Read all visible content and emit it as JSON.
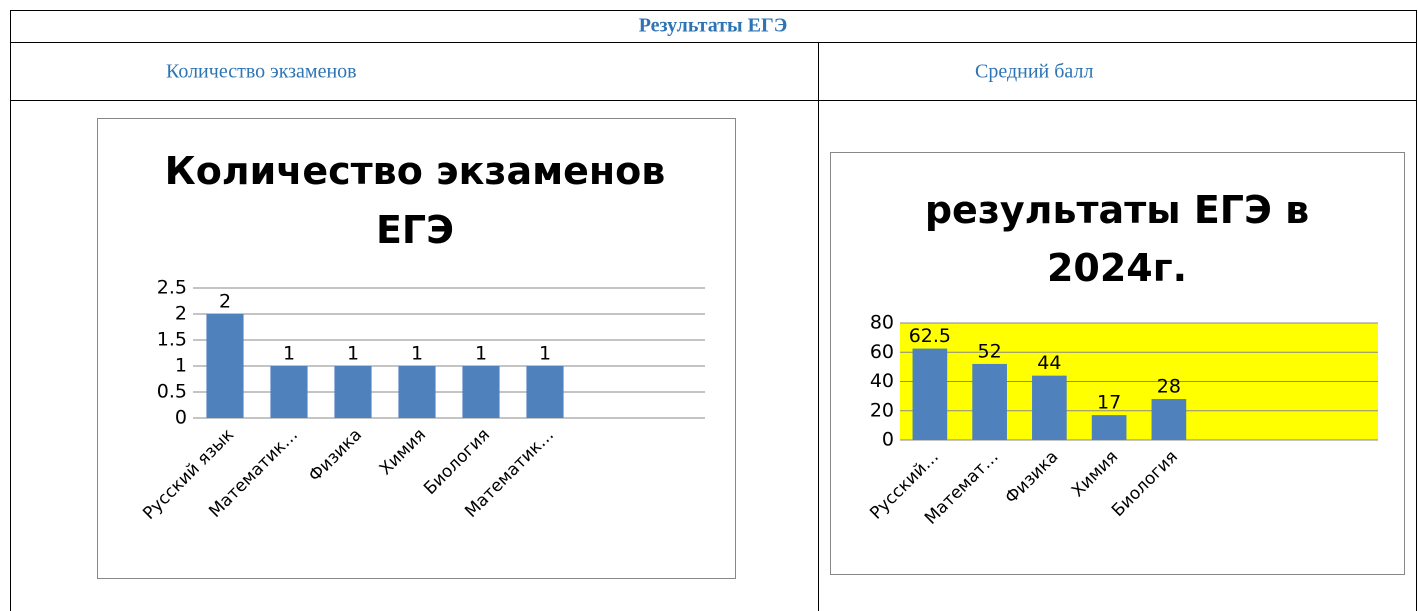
{
  "table": {
    "title": "Результаты ЕГЭ",
    "headers": [
      "Количество экзаменов",
      "Средний балл"
    ]
  },
  "chart_data": [
    {
      "type": "bar",
      "title": "Количество экзаменов ЕГЭ",
      "categories": [
        "Русский язык",
        "Математик…",
        "Физика",
        "Химия",
        "Биология",
        "Математик…",
        null,
        null
      ],
      "values": [
        2,
        1,
        1,
        1,
        1,
        1,
        null,
        null
      ],
      "color": "#4f81bd",
      "ylim": [
        0,
        2.5
      ],
      "yticks": [
        0,
        0.5,
        1,
        1.5,
        2,
        2.5
      ],
      "grid": true
    },
    {
      "type": "bar",
      "title": "результаты ЕГЭ в 2024г.",
      "categories": [
        "Русский…",
        "Математ…",
        "Физика",
        "Химия",
        "Биология",
        null,
        null,
        null
      ],
      "values": [
        62.5,
        52,
        44,
        17,
        28,
        null,
        null,
        null
      ],
      "color": "#4f81bd",
      "ylim": [
        0,
        80
      ],
      "yticks": [
        0,
        20,
        40,
        60,
        80
      ],
      "grid": true,
      "plot_background": "#ffff00"
    }
  ]
}
